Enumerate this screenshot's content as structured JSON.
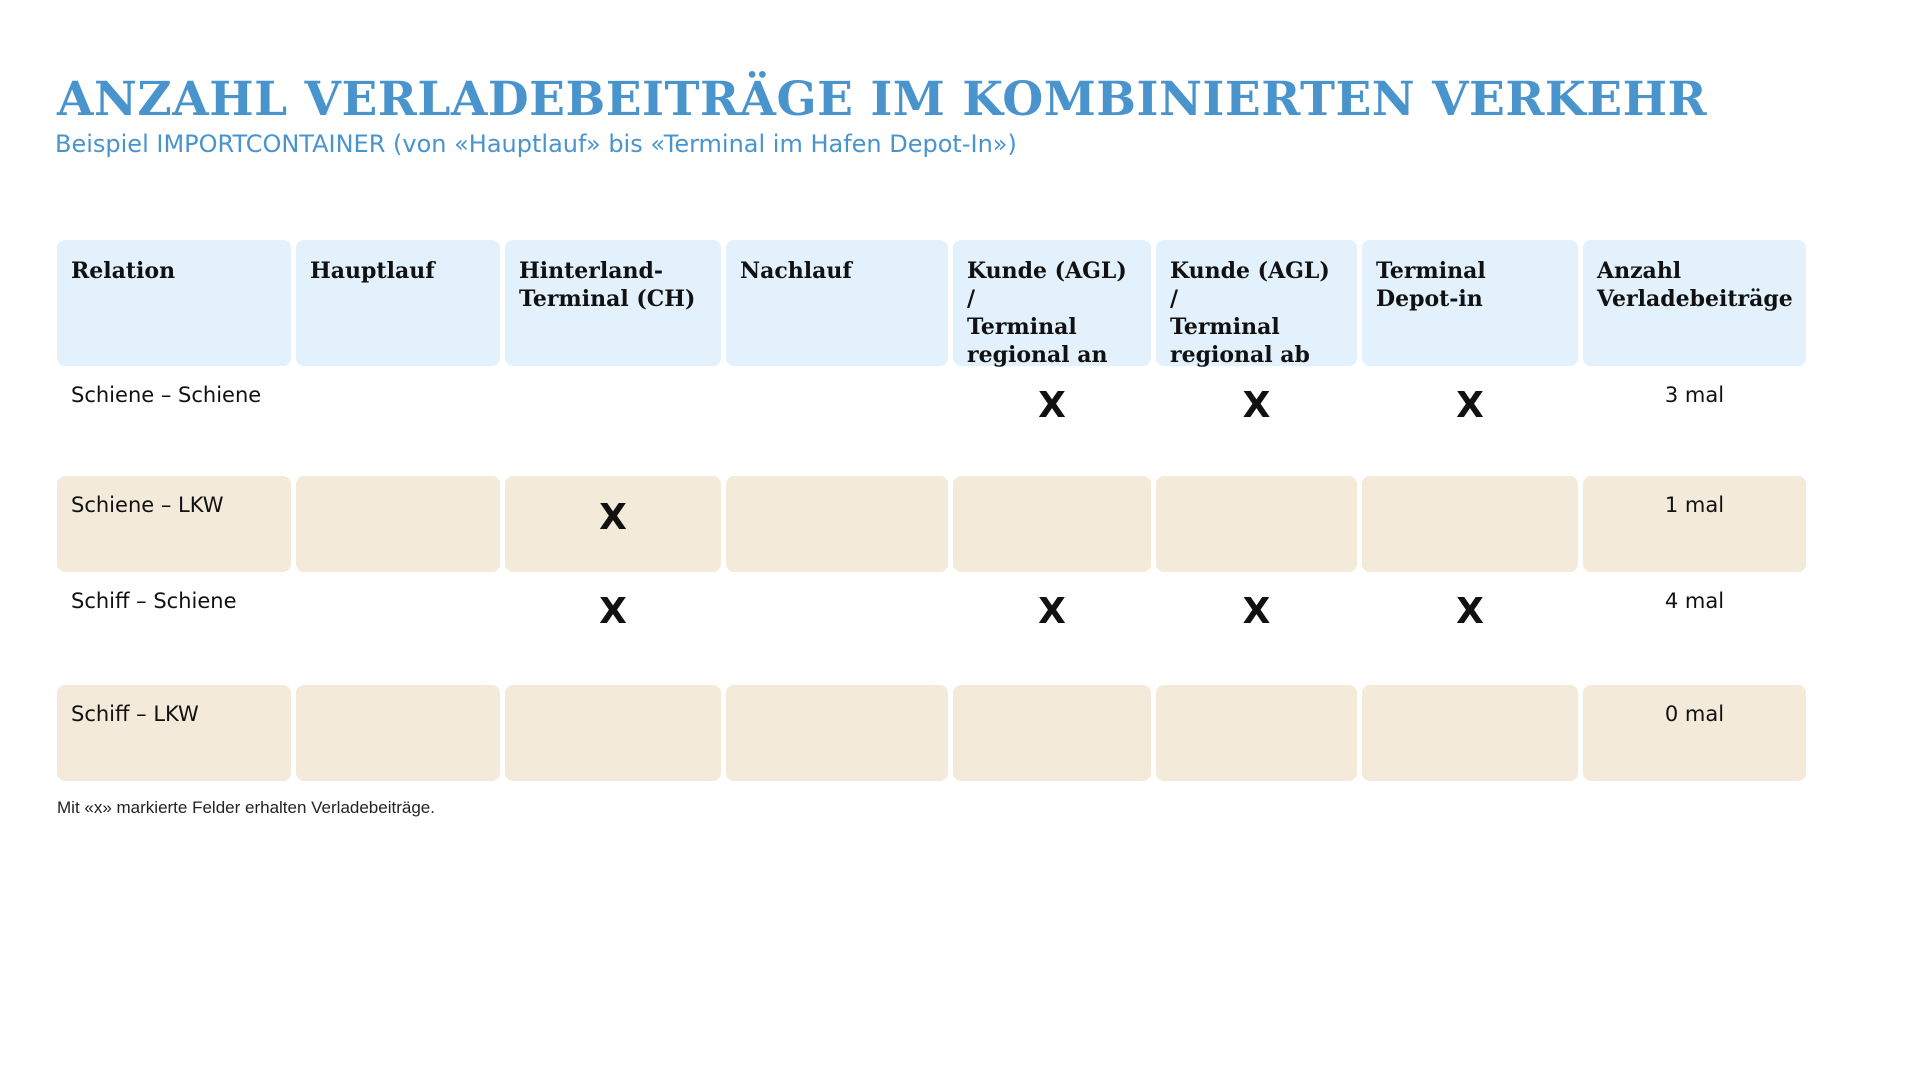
{
  "title": "ANZAHL VERLADEBEITRÄGE IM KOMBINIERTEN VERKEHR",
  "subtitle": "Beispiel IMPORTCONTAINER (von «Hauptlauf» bis «Terminal im Hafen Depot-In»)",
  "table": {
    "headers": [
      "Relation",
      "Hauptlauf",
      "Hinterland-\nTerminal (CH)",
      "Nachlauf",
      "Kunde (AGL) /\nTerminal\nregional an",
      "Kunde (AGL) /\nTerminal\nregional ab",
      "Terminal\nDepot-in",
      "Anzahl\nVerladebeiträge"
    ],
    "rows": [
      {
        "relation": "Schiene – Schiene",
        "cells": [
          "",
          "",
          "",
          "X",
          "X",
          "X"
        ],
        "count": "3 mal"
      },
      {
        "relation": "Schiene – LKW",
        "cells": [
          "",
          "X",
          "",
          "",
          "",
          ""
        ],
        "count": "1 mal"
      },
      {
        "relation": "Schiff – Schiene",
        "cells": [
          "",
          "X",
          "",
          "X",
          "X",
          "X"
        ],
        "count": "4 mal"
      },
      {
        "relation": "Schiff – LKW",
        "cells": [
          "",
          "",
          "",
          "",
          "",
          ""
        ],
        "count": "0 mal"
      }
    ]
  },
  "colors": {
    "accent": "#4a94cd",
    "header_fill": "#e2f1fc",
    "shaded_row_fill": "#f3eada"
  },
  "footnote": "Mit «x» markierte Felder erhalten Verladebeiträge."
}
